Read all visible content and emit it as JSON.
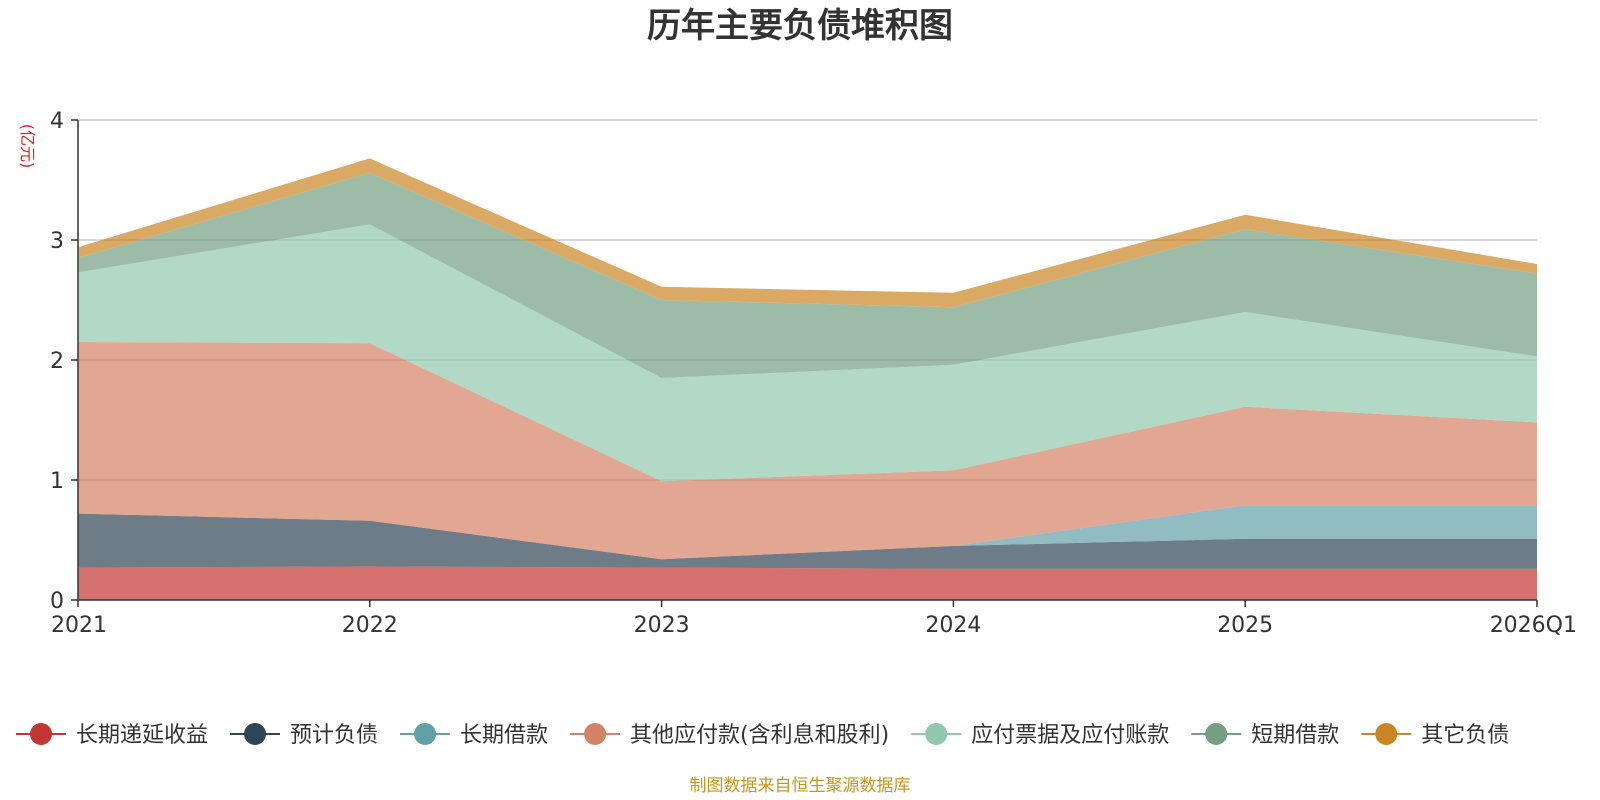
{
  "chart_data": {
    "type": "area",
    "stacked": true,
    "title": "历年主要负债堆积图",
    "ylabel": "(亿元)",
    "xlabel": "",
    "ylim": [
      0,
      4
    ],
    "yticks": [
      0,
      1,
      2,
      3,
      4
    ],
    "categories": [
      "2021",
      "2022",
      "2023",
      "2024",
      "2025",
      "2026Q1"
    ],
    "series": [
      {
        "name": "长期递延收益",
        "color": "#c23531",
        "values": [
          0.27,
          0.28,
          0.27,
          0.26,
          0.26,
          0.26
        ]
      },
      {
        "name": "预计负债",
        "color": "#2f4554",
        "values": [
          0.45,
          0.38,
          0.07,
          0.19,
          0.25,
          0.25
        ]
      },
      {
        "name": "长期借款",
        "color": "#61a0a8",
        "values": [
          0.0,
          0.0,
          0.0,
          0.0,
          0.28,
          0.28
        ]
      },
      {
        "name": "其他应付款(含利息和股利)",
        "color": "#d48265",
        "values": [
          1.43,
          1.48,
          0.65,
          0.63,
          0.82,
          0.69
        ]
      },
      {
        "name": "应付票据及应付账款",
        "color": "#91c7ae",
        "values": [
          0.58,
          0.99,
          0.86,
          0.88,
          0.79,
          0.55
        ]
      },
      {
        "name": "短期借款",
        "color": "#749f83",
        "values": [
          0.12,
          0.43,
          0.65,
          0.48,
          0.69,
          0.69
        ]
      },
      {
        "name": "其它负债",
        "color": "#ca8622",
        "values": [
          0.09,
          0.12,
          0.11,
          0.12,
          0.12,
          0.08
        ]
      }
    ],
    "legend_position": "bottom",
    "grid": true
  },
  "source_note": "制图数据来自恒生聚源数据库"
}
